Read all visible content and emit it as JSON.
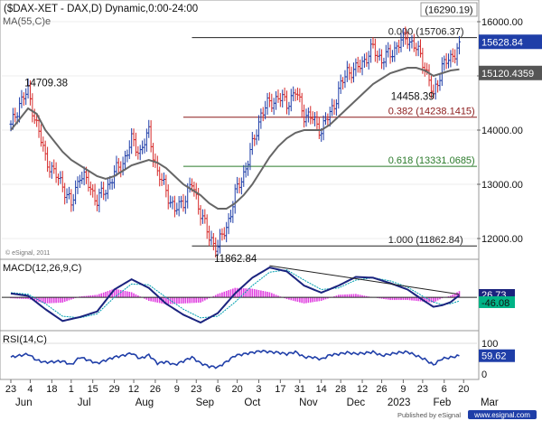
{
  "header": {
    "title": "($DAX-XET - DAX,D) Dynamic,0:00-24:00",
    "readout": "(16290.19)",
    "ma_label": "MA(55,C)e"
  },
  "credits": {
    "esignal": "© eSignal, 2011",
    "published": "Published by eSignal"
  },
  "chart_data": [
    {
      "type": "line",
      "panel": "price",
      "title": "",
      "ylim": [
        11700,
        16300
      ],
      "yticks": [
        12000,
        13000,
        14000,
        15000,
        16000
      ],
      "ytick_labels": [
        "12000.00",
        "13000.00",
        "14000.00",
        "15000.00",
        "16000.00"
      ],
      "series": [
        {
          "name": "$DAX-XET close",
          "color": "#1f3ea8",
          "x": [
            0,
            4,
            8,
            12,
            16,
            20,
            24,
            28,
            32,
            36,
            40,
            44,
            48,
            52,
            56,
            60,
            64,
            68,
            72,
            76,
            80,
            84,
            88,
            92,
            96,
            100,
            104,
            108,
            112,
            116,
            120,
            124,
            128,
            132,
            136,
            140,
            144,
            148,
            152,
            156,
            160,
            164,
            168,
            172,
            176,
            180,
            184,
            188,
            192,
            196,
            200,
            204,
            208
          ],
          "values": [
            14050,
            14500,
            14709,
            14100,
            13500,
            13200,
            13000,
            12600,
            13200,
            13000,
            12700,
            12900,
            13200,
            13400,
            13800,
            13600,
            13950,
            13200,
            12900,
            12500,
            12700,
            13000,
            12500,
            12000,
            11862,
            12200,
            12800,
            13200,
            13700,
            14300,
            14500,
            14600,
            14500,
            14700,
            14300,
            14200,
            14000,
            14300,
            14700,
            15100,
            15100,
            15300,
            15500,
            15300,
            15400,
            15600,
            15706,
            15500,
            15200,
            14600,
            15200,
            15300,
            15628
          ],
          "last_value": "15628.84"
        },
        {
          "name": "MA(55,C)e",
          "color": "#666666",
          "x": [
            0,
            4,
            8,
            12,
            16,
            20,
            24,
            28,
            32,
            36,
            40,
            44,
            48,
            52,
            56,
            60,
            64,
            68,
            72,
            76,
            80,
            84,
            88,
            92,
            96,
            100,
            104,
            108,
            112,
            116,
            120,
            124,
            128,
            132,
            136,
            140,
            144,
            148,
            152,
            156,
            160,
            164,
            168,
            172,
            176,
            180,
            184,
            188,
            192,
            196,
            200,
            204,
            208
          ],
          "values": [
            14000,
            14200,
            14400,
            14300,
            14000,
            13800,
            13600,
            13450,
            13350,
            13250,
            13150,
            13100,
            13150,
            13250,
            13350,
            13400,
            13450,
            13400,
            13300,
            13150,
            13000,
            12900,
            12800,
            12650,
            12550,
            12550,
            12650,
            12800,
            13000,
            13250,
            13500,
            13700,
            13850,
            13950,
            14000,
            14000,
            14000,
            14100,
            14250,
            14400,
            14550,
            14700,
            14850,
            14950,
            15050,
            15100,
            15150,
            15150,
            15100,
            15000,
            15050,
            15100,
            15120
          ],
          "last_value": "15120.4359"
        }
      ],
      "annotations": [
        {
          "label": "14709.38",
          "x": 8,
          "y": 14709.38
        },
        {
          "label": "11862.84",
          "x": 96,
          "y": 11862.84
        },
        {
          "label": "14458.39",
          "x": 188,
          "y": 14458.39
        }
      ],
      "fib_levels": [
        {
          "ratio": "0.000",
          "value": "(15706.37)",
          "level": 15706.37,
          "color": "#222222"
        },
        {
          "ratio": "0.382",
          "value": "(14238.1415)",
          "level": 14238.1415,
          "color": "#8b1a1a"
        },
        {
          "ratio": "0.618",
          "value": "(13331.0685)",
          "level": 13331.0685,
          "color": "#2a7a2a"
        },
        {
          "ratio": "1.000",
          "value": "(11862.84)",
          "level": 11862.84,
          "color": "#222222"
        }
      ],
      "grid": true
    },
    {
      "type": "line",
      "panel": "macd",
      "title": "MACD(12,26,9,C)",
      "ylim": [
        -400,
        450
      ],
      "series": [
        {
          "name": "MACD",
          "color": "#1a237e",
          "x": [
            0,
            8,
            16,
            24,
            32,
            40,
            48,
            56,
            64,
            72,
            80,
            88,
            96,
            104,
            112,
            120,
            128,
            136,
            144,
            152,
            160,
            168,
            176,
            184,
            192,
            196,
            200,
            204,
            208
          ],
          "values": [
            50,
            20,
            -150,
            -300,
            -250,
            -180,
            100,
            230,
            120,
            -80,
            -220,
            -320,
            -200,
            50,
            250,
            380,
            330,
            150,
            60,
            150,
            260,
            250,
            180,
            100,
            -50,
            -120,
            -100,
            -60,
            26.73
          ]
        },
        {
          "name": "Signal",
          "color": "#00a0b0",
          "x": [
            0,
            8,
            16,
            24,
            32,
            40,
            48,
            56,
            64,
            72,
            80,
            88,
            96,
            104,
            112,
            120,
            128,
            136,
            144,
            152,
            160,
            168,
            176,
            184,
            192,
            196,
            200,
            204,
            208
          ],
          "values": [
            60,
            40,
            -80,
            -240,
            -260,
            -210,
            0,
            170,
            160,
            0,
            -150,
            -260,
            -240,
            -60,
            150,
            320,
            350,
            220,
            100,
            120,
            220,
            250,
            210,
            130,
            0,
            -60,
            -90,
            -80,
            -46.08
          ]
        }
      ],
      "last_values": [
        "26.73",
        "-46.08"
      ],
      "grid": false
    },
    {
      "type": "line",
      "panel": "rsi",
      "title": "RSI(14,C)",
      "ylim": [
        0,
        100
      ],
      "yticks": [
        0,
        100
      ],
      "series": [
        {
          "name": "RSI",
          "color": "#1f3ea8",
          "x": [
            0,
            4,
            8,
            12,
            16,
            20,
            24,
            28,
            32,
            36,
            40,
            44,
            48,
            52,
            56,
            60,
            64,
            68,
            72,
            76,
            80,
            84,
            88,
            92,
            96,
            100,
            104,
            108,
            112,
            116,
            120,
            124,
            128,
            132,
            136,
            140,
            144,
            148,
            152,
            156,
            160,
            164,
            168,
            172,
            176,
            180,
            184,
            188,
            192,
            196,
            200,
            204,
            208
          ],
          "values": [
            55,
            60,
            65,
            45,
            38,
            40,
            42,
            30,
            55,
            45,
            35,
            45,
            55,
            60,
            68,
            50,
            62,
            35,
            40,
            30,
            42,
            55,
            35,
            25,
            22,
            40,
            60,
            65,
            70,
            75,
            72,
            70,
            65,
            72,
            55,
            55,
            48,
            62,
            65,
            70,
            66,
            68,
            72,
            60,
            65,
            70,
            72,
            60,
            48,
            30,
            50,
            54,
            59.62
          ],
          "last_value": "59.62"
        }
      ]
    }
  ],
  "x_axis": {
    "ticks": [
      {
        "label": "23",
        "x": 0
      },
      {
        "label": "4",
        "x": 9
      },
      {
        "label": "18",
        "x": 19
      },
      {
        "label": "1",
        "x": 28
      },
      {
        "label": "15",
        "x": 38
      },
      {
        "label": "29",
        "x": 48
      },
      {
        "label": "12",
        "x": 57
      },
      {
        "label": "26",
        "x": 67
      },
      {
        "label": "9",
        "x": 77
      },
      {
        "label": "23",
        "x": 86
      },
      {
        "label": "6",
        "x": 96
      },
      {
        "label": "20",
        "x": 105
      },
      {
        "label": "3",
        "x": 115
      },
      {
        "label": "17",
        "x": 125
      },
      {
        "label": "31",
        "x": 134
      },
      {
        "label": "14",
        "x": 144
      },
      {
        "label": "28",
        "x": 153
      },
      {
        "label": "12",
        "x": 163
      },
      {
        "label": "26",
        "x": 172
      },
      {
        "label": "9",
        "x": 182
      },
      {
        "label": "23",
        "x": 191
      },
      {
        "label": "6",
        "x": 201
      },
      {
        "label": "20",
        "x": 210
      }
    ],
    "months": [
      {
        "label": "Jun",
        "x": 6
      },
      {
        "label": "Jul",
        "x": 34
      },
      {
        "label": "Aug",
        "x": 62
      },
      {
        "label": "Sep",
        "x": 90
      },
      {
        "label": "Oct",
        "x": 112
      },
      {
        "label": "Nov",
        "x": 138
      },
      {
        "label": "Dec",
        "x": 160
      },
      {
        "label": "2023",
        "x": 180
      },
      {
        "label": "Feb",
        "x": 200
      },
      {
        "label": "Mar",
        "x": 222
      }
    ]
  },
  "colors": {
    "up_bar": "#1f3ea8",
    "down_bar": "#d62b2b",
    "macd_hist": "#e040e0",
    "price_badge": "#1f3ea8",
    "ma_badge": "#555555",
    "rsi_badge": "#1f3ea8"
  }
}
